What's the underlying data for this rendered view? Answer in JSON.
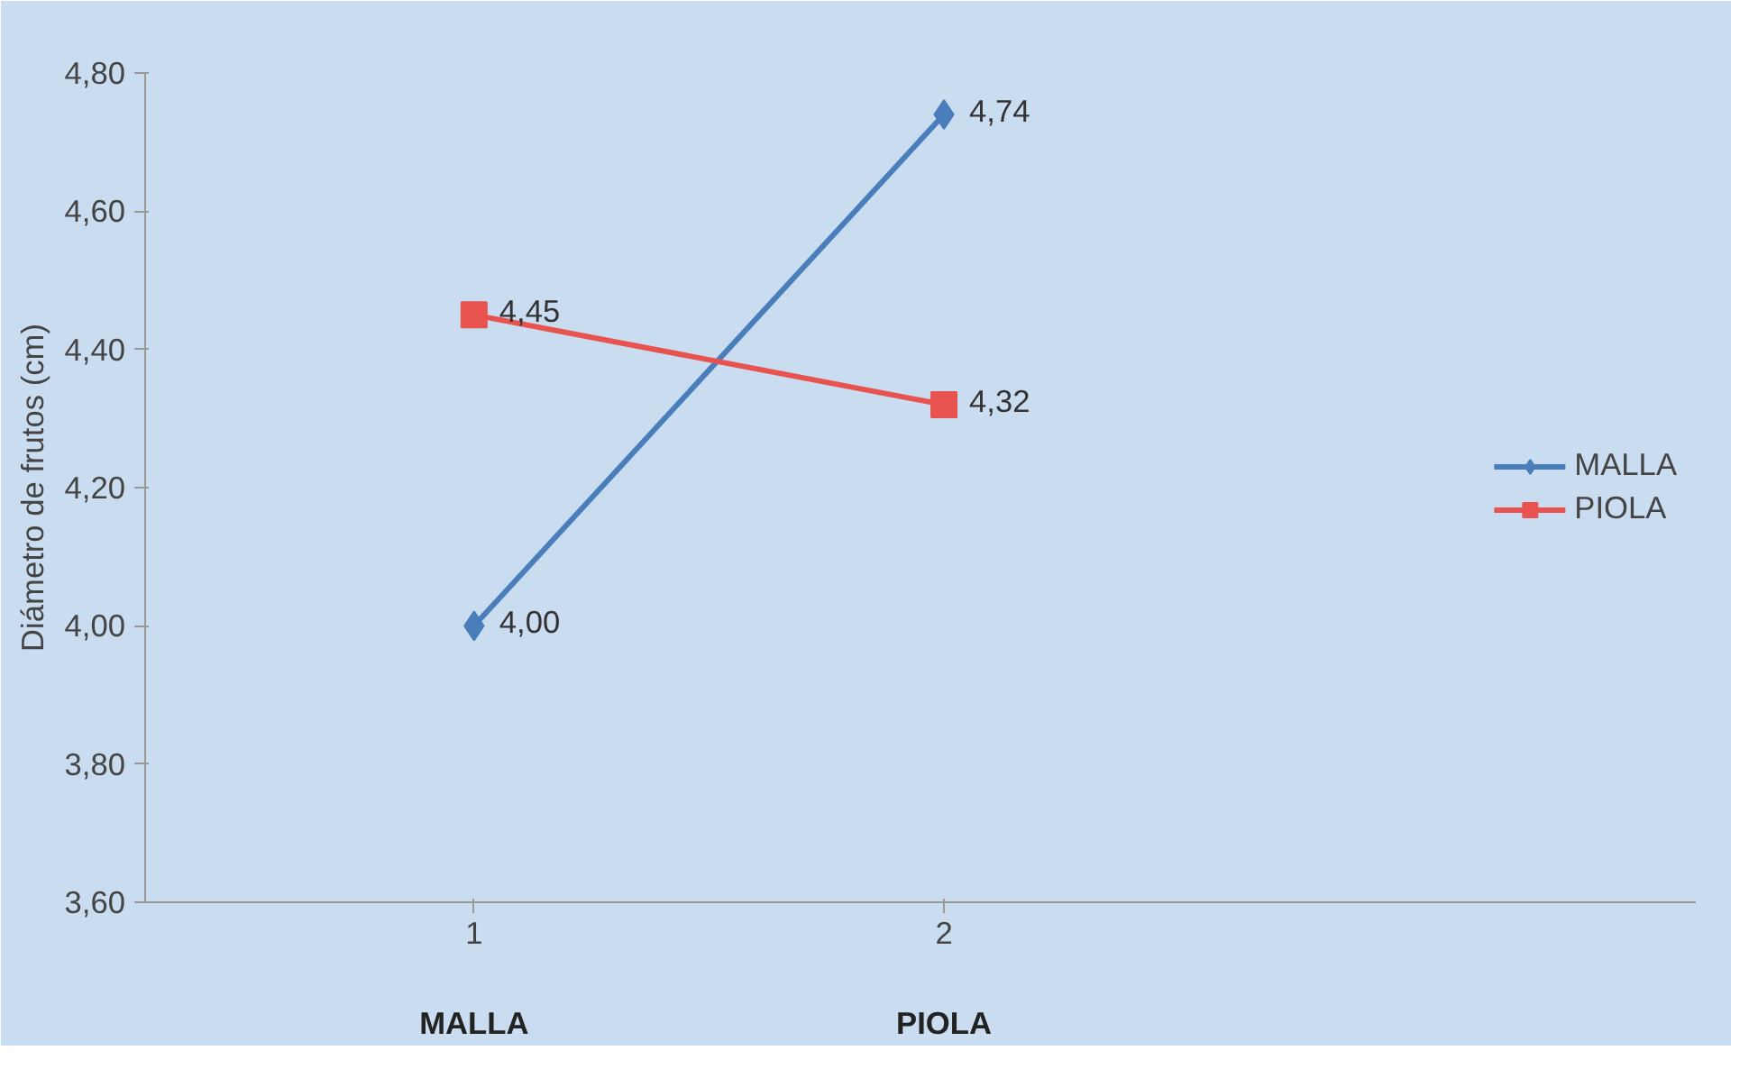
{
  "chart_data": {
    "type": "line",
    "ylabel": "Diámetro de frutos (cm)",
    "categories": [
      "1",
      "2"
    ],
    "series": [
      {
        "name": "MALLA",
        "color": "#4a7ebb",
        "values": [
          4.0,
          4.74
        ],
        "marker": "diamond",
        "value_labels": [
          "4,00",
          "4,74"
        ]
      },
      {
        "name": "PIOLA",
        "color": "#e8534f",
        "values": [
          4.45,
          4.32
        ],
        "marker": "square",
        "value_labels": [
          "4,45",
          "4,32"
        ]
      }
    ],
    "annotations": [
      "MALLA",
      "PIOLA"
    ],
    "ylim": [
      3.6,
      4.8
    ],
    "yticks": [
      {
        "value": 3.6,
        "label": "3,60"
      },
      {
        "value": 3.8,
        "label": "3,80"
      },
      {
        "value": 4.0,
        "label": "4,00"
      },
      {
        "value": 4.2,
        "label": "4,20"
      },
      {
        "value": 4.4,
        "label": "4,40"
      },
      {
        "value": 4.6,
        "label": "4,60"
      },
      {
        "value": 4.8,
        "label": "4,80"
      }
    ],
    "grid": false,
    "legend": "right",
    "line_style": "solid"
  }
}
